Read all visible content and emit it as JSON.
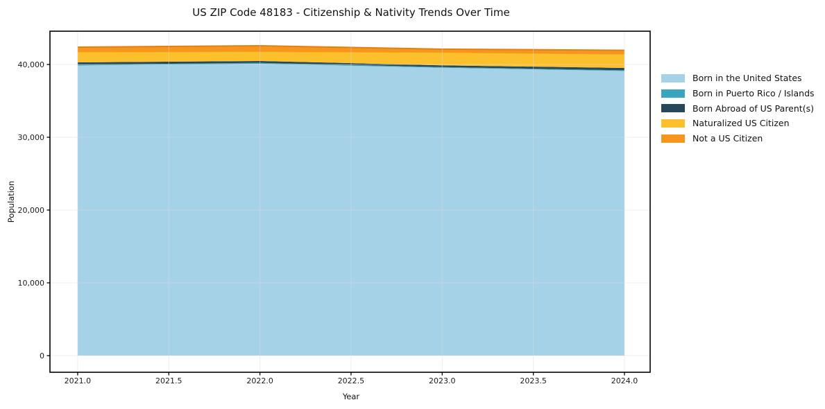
{
  "chart_data": {
    "type": "area",
    "stacked": true,
    "title": "US ZIP Code 48183 - Citizenship & Nativity Trends Over Time",
    "xlabel": "Year",
    "ylabel": "Population",
    "x": [
      2021,
      2022,
      2023,
      2024
    ],
    "series": [
      {
        "name": "Born in the United States",
        "color": "#a5d2e7",
        "edge": "#8fc3dc",
        "values": [
          39850,
          40100,
          39550,
          39100
        ]
      },
      {
        "name": "Born in Puerto Rico / Islands",
        "color": "#39a5be",
        "edge": "#2f93aa",
        "values": [
          130,
          120,
          90,
          100
        ]
      },
      {
        "name": "Born Abroad of US Parent(s)",
        "color": "#26485a",
        "edge": "#1d3a49",
        "values": [
          300,
          260,
          240,
          320
        ]
      },
      {
        "name": "Naturalized US Citizen",
        "color": "#fcc02d",
        "edge": "#eeab1b",
        "values": [
          1450,
          1300,
          1780,
          1900
        ]
      },
      {
        "name": "Not a US Citizen",
        "color": "#f7951f",
        "edge": "#e0820f",
        "values": [
          650,
          790,
          450,
          530
        ]
      }
    ],
    "x_ticks": [
      {
        "value": 2021.0,
        "label": "2021.0"
      },
      {
        "value": 2021.5,
        "label": "2021.5"
      },
      {
        "value": 2022.0,
        "label": "2022.0"
      },
      {
        "value": 2022.5,
        "label": "2022.5"
      },
      {
        "value": 2023.0,
        "label": "2023.0"
      },
      {
        "value": 2023.5,
        "label": "2023.5"
      },
      {
        "value": 2024.0,
        "label": "2024.0"
      }
    ],
    "y_ticks": [
      {
        "value": 0,
        "label": "0"
      },
      {
        "value": 10000,
        "label": "10,000"
      },
      {
        "value": 20000,
        "label": "20,000"
      },
      {
        "value": 30000,
        "label": "30,000"
      },
      {
        "value": 40000,
        "label": "40,000"
      }
    ],
    "xlim": [
      2020.848,
      2024.141
    ],
    "ylim": [
      -2286,
      44571
    ],
    "grid": true,
    "legend_position": "right",
    "colors": {
      "spine": "#000000",
      "tick_text": "#1a1a1a",
      "gridline": "#dcdcdc",
      "background": "#ffffff"
    }
  }
}
